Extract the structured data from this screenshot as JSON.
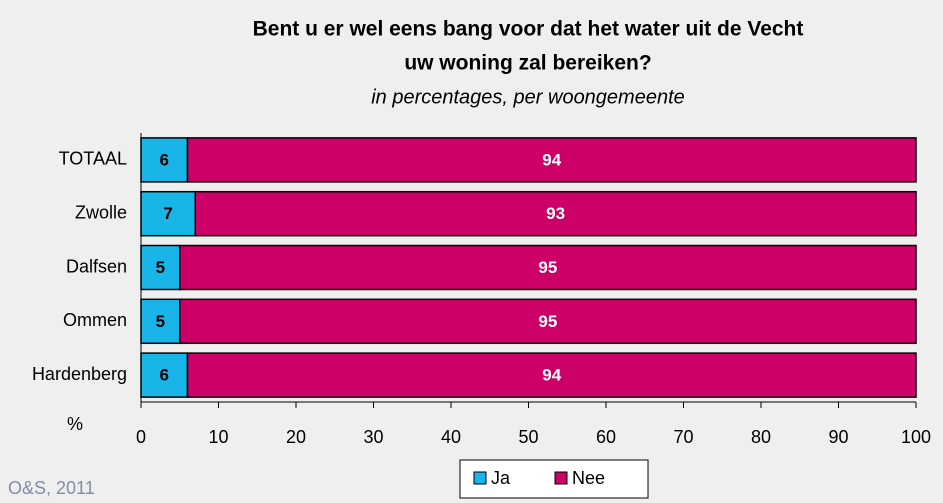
{
  "chart_data": {
    "type": "stacked_bar_horizontal",
    "title": [
      "Bent u er wel eens bang voor dat het water uit de Vecht",
      "uw woning zal bereiken?"
    ],
    "subtitle": "in percentages, per woongemeente",
    "categories": [
      "TOTAAL",
      "Zwolle",
      "Dalfsen",
      "Ommen",
      "Hardenberg"
    ],
    "series": [
      {
        "name": "Ja",
        "color": "#19b4e8",
        "values": [
          6,
          7,
          5,
          5,
          6
        ]
      },
      {
        "name": "Nee",
        "color": "#cc0066",
        "values": [
          94,
          93,
          95,
          95,
          94
        ]
      }
    ],
    "xlabel": "%",
    "xlim": [
      0,
      100
    ],
    "xticks": [
      0,
      10,
      20,
      30,
      40,
      50,
      60,
      70,
      80,
      90,
      100
    ],
    "source": "O&S, 2011"
  }
}
